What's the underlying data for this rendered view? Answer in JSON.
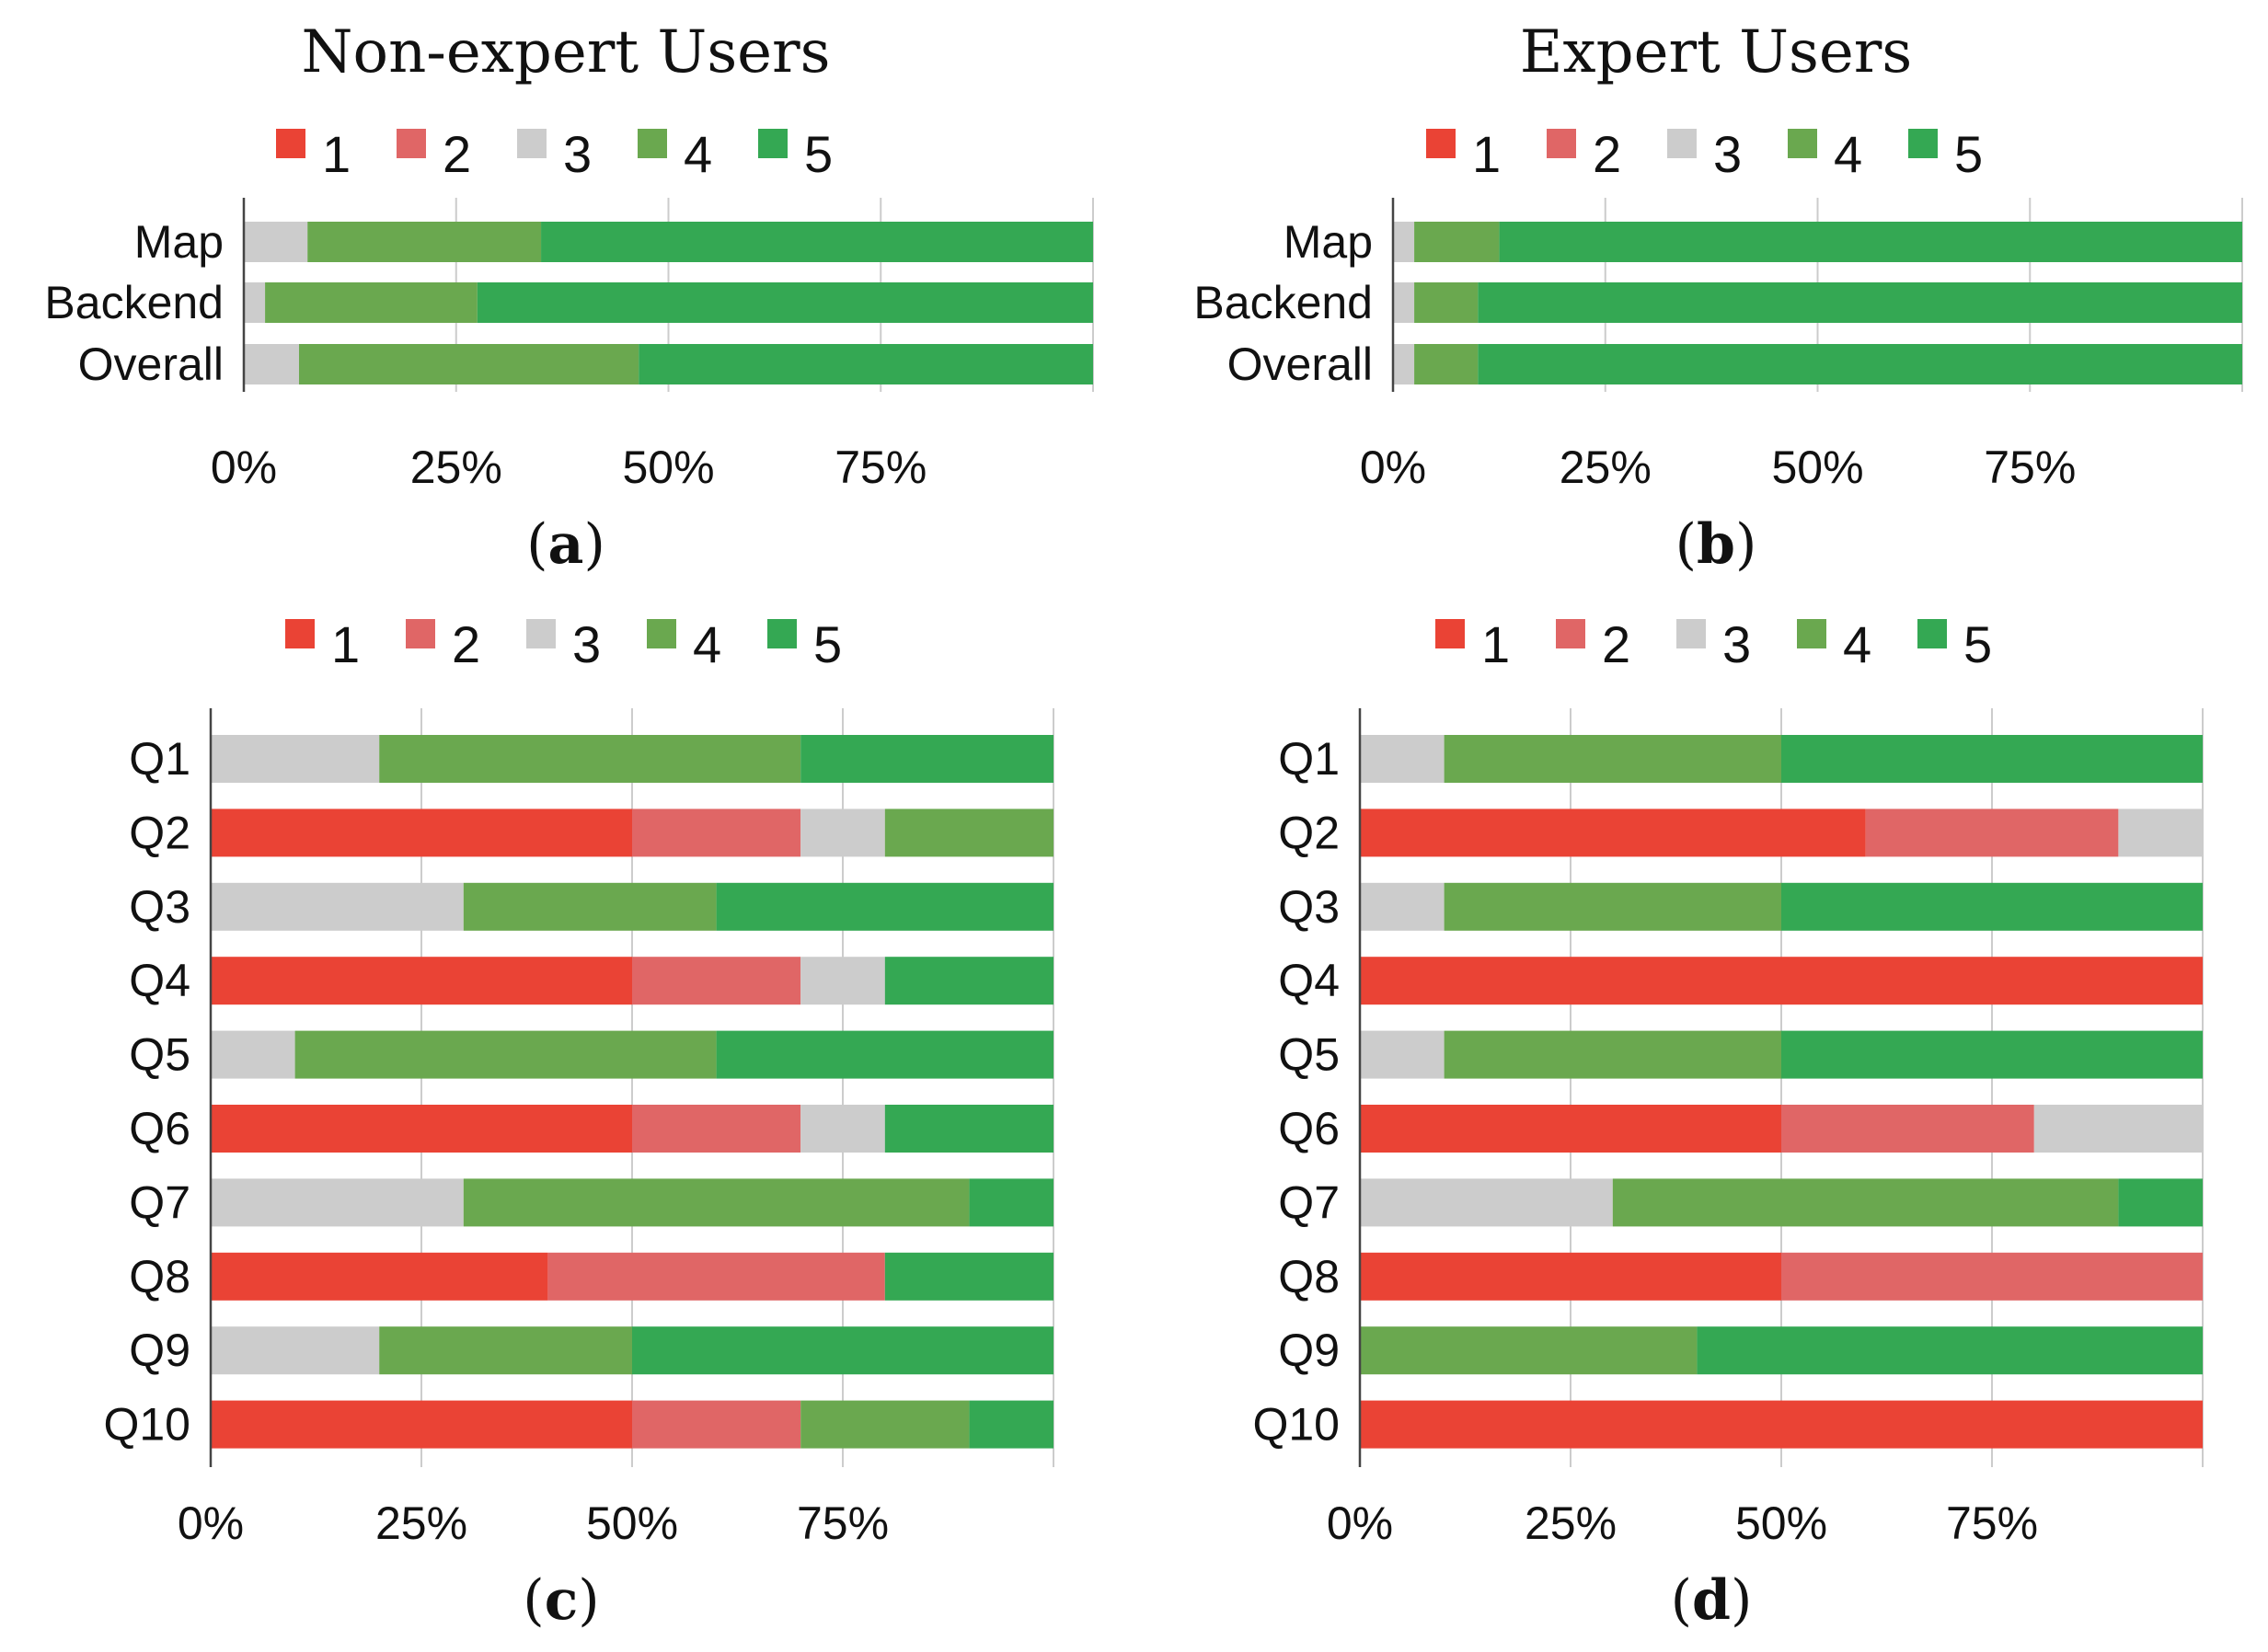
{
  "figure": {
    "legend_labels": [
      "1",
      "2",
      "3",
      "4",
      "5"
    ],
    "colors": [
      "#EA4335",
      "#E06666",
      "#CCCCCC",
      "#6AA84F",
      "#34A853"
    ],
    "axis_color": "#444444",
    "grid_color": "#CCCCCC"
  },
  "chart_data": [
    {
      "id": "a",
      "type": "bar",
      "orientation": "horizontal",
      "stacked": "percent",
      "title": "Non-expert Users",
      "caption": "a",
      "categories": [
        "Map",
        "Backend",
        "Overall"
      ],
      "series": [
        {
          "name": "1",
          "values": [
            0,
            0,
            0
          ]
        },
        {
          "name": "2",
          "values": [
            0,
            0,
            0
          ]
        },
        {
          "name": "3",
          "values": [
            7.5,
            2.5,
            6.5
          ]
        },
        {
          "name": "4",
          "values": [
            27.5,
            25,
            40
          ]
        },
        {
          "name": "5",
          "values": [
            65,
            72.5,
            53.5
          ]
        }
      ],
      "xlim": [
        0,
        100
      ],
      "xticks": [
        "0%",
        "25%",
        "50%",
        "75%"
      ],
      "legend": "top"
    },
    {
      "id": "b",
      "type": "bar",
      "orientation": "horizontal",
      "stacked": "percent",
      "title": "Expert Users",
      "caption": "b",
      "categories": [
        "Map",
        "Backend",
        "Overall"
      ],
      "series": [
        {
          "name": "1",
          "values": [
            0,
            0,
            0
          ]
        },
        {
          "name": "2",
          "values": [
            0,
            0,
            0
          ]
        },
        {
          "name": "3",
          "values": [
            2.5,
            2.5,
            2.5
          ]
        },
        {
          "name": "4",
          "values": [
            10,
            7.5,
            7.5
          ]
        },
        {
          "name": "5",
          "values": [
            87.5,
            90,
            90
          ]
        }
      ],
      "xlim": [
        0,
        100
      ],
      "xticks": [
        "0%",
        "25%",
        "50%",
        "75%"
      ],
      "legend": "top"
    },
    {
      "id": "c",
      "type": "bar",
      "orientation": "horizontal",
      "stacked": "percent",
      "title": "",
      "caption": "c",
      "categories": [
        "Q1",
        "Q2",
        "Q3",
        "Q4",
        "Q5",
        "Q6",
        "Q7",
        "Q8",
        "Q9",
        "Q10"
      ],
      "series": [
        {
          "name": "1",
          "values": [
            0,
            50,
            0,
            50,
            0,
            50,
            0,
            40,
            0,
            50
          ]
        },
        {
          "name": "2",
          "values": [
            0,
            20,
            0,
            20,
            0,
            20,
            0,
            40,
            0,
            20
          ]
        },
        {
          "name": "3",
          "values": [
            20,
            10,
            30,
            10,
            10,
            10,
            30,
            0,
            20,
            0
          ]
        },
        {
          "name": "4",
          "values": [
            50,
            20,
            30,
            0,
            50,
            0,
            60,
            0,
            30,
            20
          ]
        },
        {
          "name": "5",
          "values": [
            30,
            0,
            40,
            20,
            40,
            20,
            10,
            20,
            50,
            10
          ]
        }
      ],
      "xlim": [
        0,
        100
      ],
      "xticks": [
        "0%",
        "25%",
        "50%",
        "75%"
      ],
      "legend": "top"
    },
    {
      "id": "d",
      "type": "bar",
      "orientation": "horizontal",
      "stacked": "percent",
      "title": "",
      "caption": "d",
      "categories": [
        "Q1",
        "Q2",
        "Q3",
        "Q4",
        "Q5",
        "Q6",
        "Q7",
        "Q8",
        "Q9",
        "Q10"
      ],
      "series": [
        {
          "name": "1",
          "values": [
            0,
            60,
            0,
            100,
            0,
            50,
            0,
            50,
            0,
            100
          ]
        },
        {
          "name": "2",
          "values": [
            0,
            30,
            0,
            0,
            0,
            30,
            0,
            50,
            0,
            0
          ]
        },
        {
          "name": "3",
          "values": [
            10,
            10,
            10,
            0,
            10,
            20,
            30,
            0,
            0,
            0
          ]
        },
        {
          "name": "4",
          "values": [
            40,
            0,
            40,
            0,
            40,
            0,
            60,
            0,
            40,
            0
          ]
        },
        {
          "name": "5",
          "values": [
            50,
            0,
            50,
            0,
            50,
            0,
            10,
            0,
            60,
            0
          ]
        }
      ],
      "xlim": [
        0,
        100
      ],
      "xticks": [
        "0%",
        "25%",
        "50%",
        "75%"
      ],
      "legend": "top"
    }
  ]
}
